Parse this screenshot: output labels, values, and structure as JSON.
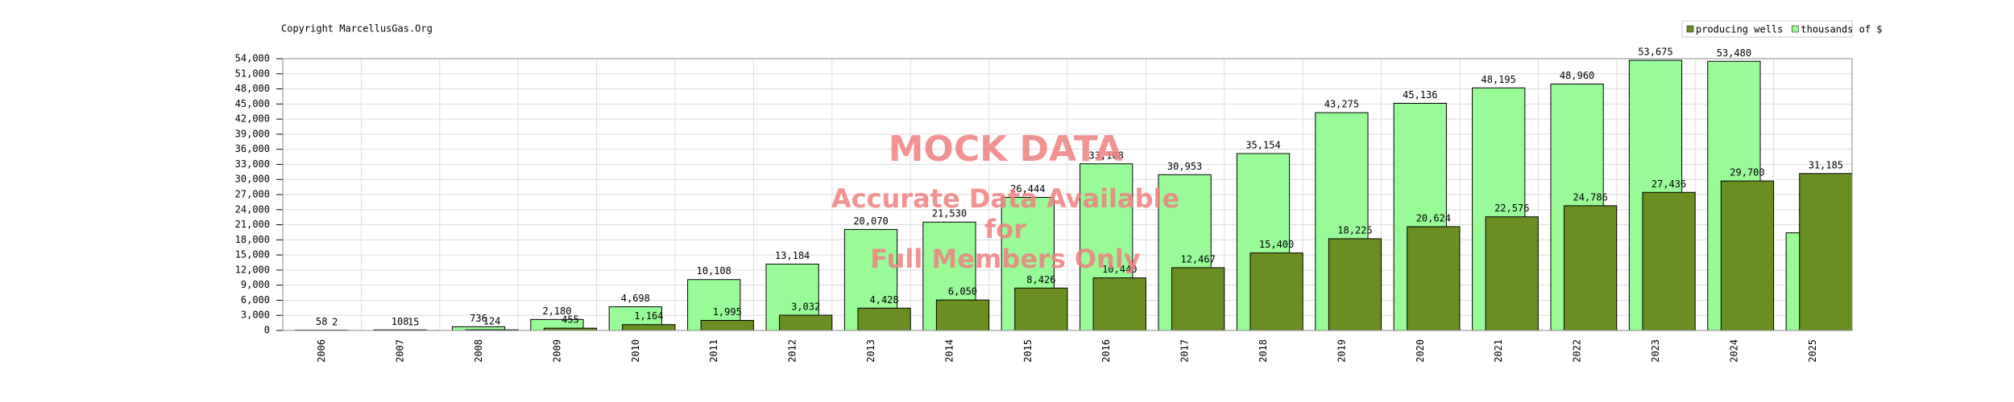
{
  "chart_data": {
    "type": "bar",
    "copyright": "Copyright MarcellusGas.Org",
    "watermark": [
      "MOCK DATA",
      "Accurate Data Available",
      "for",
      "Full Members Only"
    ],
    "categories": [
      "2006",
      "2007",
      "2008",
      "2009",
      "2010",
      "2011",
      "2012",
      "2013",
      "2014",
      "2015",
      "2016",
      "2017",
      "2018",
      "2019",
      "2020",
      "2021",
      "2022",
      "2023",
      "2024",
      "2025"
    ],
    "series": [
      {
        "name": "thousands of $",
        "color": "#98fb98",
        "values": [
          58,
          108,
          736,
          2180,
          4698,
          10108,
          13184,
          20070,
          21530,
          26444,
          33108,
          30953,
          35154,
          43275,
          45136,
          48195,
          48960,
          53675,
          53480,
          19400
        ],
        "value_labels": [
          "58",
          "108",
          "736",
          "2,180",
          "4,698",
          "10,108",
          "13,184",
          "20,070",
          "21,530",
          "26,444",
          "33,108",
          "30,953",
          "35,154",
          "43,275",
          "45,136",
          "48,195",
          "48,960",
          "53,675",
          "53,480",
          null
        ]
      },
      {
        "name": "producing wells",
        "color": "#6b8e23",
        "values": [
          2,
          15,
          124,
          455,
          1164,
          1995,
          3032,
          4428,
          6050,
          8426,
          10440,
          12467,
          15400,
          18225,
          20624,
          22576,
          24786,
          27436,
          29700,
          31185
        ],
        "value_labels": [
          "2",
          "15",
          "124",
          "455",
          "1,164",
          "1,995",
          "3,032",
          "4,428",
          "6,050",
          "8,426",
          "10,440",
          "12,467",
          "15,400",
          "18,225",
          "20,624",
          "22,576",
          "24,786",
          "27,436",
          "29,700",
          "31,185"
        ]
      }
    ],
    "ylim": [
      0,
      54000
    ],
    "yticks": [
      0,
      {
        "value": 3000,
        "label": "3,000"
      },
      {
        "value": 6000,
        "label": "6,000"
      },
      {
        "value": 9000,
        "label": "9,000"
      },
      {
        "value": 12000,
        "label": "12,000"
      },
      {
        "value": 15000,
        "label": "15,000"
      },
      {
        "value": 18000,
        "label": "18,000"
      },
      {
        "value": 21000,
        "label": "21,000"
      },
      {
        "value": 24000,
        "label": "24,000"
      },
      {
        "value": 27000,
        "label": "27,000"
      },
      {
        "value": 30000,
        "label": "30,000"
      },
      {
        "value": 33000,
        "label": "33,000"
      },
      {
        "value": 36000,
        "label": "36,000"
      },
      {
        "value": 39000,
        "label": "39,000"
      },
      {
        "value": 42000,
        "label": "42,000"
      },
      {
        "value": 45000,
        "label": "45,000"
      },
      {
        "value": 48000,
        "label": "48,000"
      },
      {
        "value": 51000,
        "label": "51,000"
      },
      {
        "value": 54000,
        "label": "54,000"
      }
    ],
    "grid": true,
    "legend": "top-right"
  }
}
